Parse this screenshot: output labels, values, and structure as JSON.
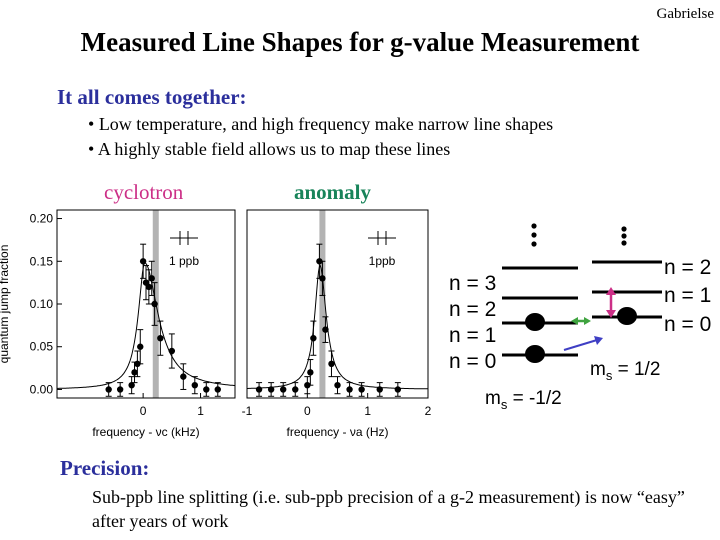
{
  "header": {
    "author": "Gabrielse",
    "title": "Measured Line Shapes for g-value Measurement",
    "subtitle": "It all comes together:",
    "bullets": [
      "Low temperature, and high frequency make narrow line shapes",
      "A highly stable field allows us to map these lines"
    ]
  },
  "labels": {
    "cyclotron": "cyclotron",
    "anomaly": "anomaly"
  },
  "colors": {
    "heading_blue": "#2b2f9c",
    "cyclotron_pink": "#cc2f87",
    "anomaly_green": "#18845a",
    "resonance_bar": "#b3b3b3"
  },
  "chart_data": [
    {
      "type": "scatter",
      "ylabel": "quantum jump fraction",
      "xlabel": "frequency - νc (kHz)",
      "yticks": [
        "0.00",
        "0.05",
        "0.10",
        "0.15",
        "0.20"
      ],
      "xticks": [
        "0",
        "1"
      ],
      "ylim": [
        -0.01,
        0.21
      ],
      "xlim": [
        -1.5,
        1.6
      ],
      "annotation": "1 ppb",
      "resonance_x": 0.22,
      "points": [
        {
          "x": -0.6,
          "y": 0.0,
          "err": 0.008
        },
        {
          "x": -0.4,
          "y": 0.0,
          "err": 0.008
        },
        {
          "x": -0.2,
          "y": 0.005,
          "err": 0.01
        },
        {
          "x": -0.15,
          "y": 0.02,
          "err": 0.012
        },
        {
          "x": -0.1,
          "y": 0.03,
          "err": 0.015
        },
        {
          "x": -0.05,
          "y": 0.05,
          "err": 0.02
        },
        {
          "x": 0.0,
          "y": 0.15,
          "err": 0.02
        },
        {
          "x": 0.05,
          "y": 0.125,
          "err": 0.02
        },
        {
          "x": 0.1,
          "y": 0.12,
          "err": 0.02
        },
        {
          "x": 0.15,
          "y": 0.13,
          "err": 0.02
        },
        {
          "x": 0.2,
          "y": 0.1,
          "err": 0.025
        },
        {
          "x": 0.3,
          "y": 0.06,
          "err": 0.02
        },
        {
          "x": 0.5,
          "y": 0.045,
          "err": 0.02
        },
        {
          "x": 0.7,
          "y": 0.015,
          "err": 0.015
        },
        {
          "x": 0.9,
          "y": 0.005,
          "err": 0.01
        },
        {
          "x": 1.1,
          "y": 0.0,
          "err": 0.008
        },
        {
          "x": 1.3,
          "y": 0.0,
          "err": 0.008
        }
      ]
    },
    {
      "type": "scatter",
      "xlabel": "frequency - νa (Hz)",
      "yticks": [],
      "xticks": [
        "-1",
        "0",
        "1",
        "2"
      ],
      "ylim": [
        -0.01,
        0.21
      ],
      "xlim": [
        -1.0,
        2.0
      ],
      "annotation": "1ppb",
      "resonance_x": 0.25,
      "points": [
        {
          "x": -0.8,
          "y": 0.0,
          "err": 0.008
        },
        {
          "x": -0.6,
          "y": 0.0,
          "err": 0.008
        },
        {
          "x": -0.4,
          "y": 0.0,
          "err": 0.008
        },
        {
          "x": -0.2,
          "y": 0.0,
          "err": 0.008
        },
        {
          "x": 0.0,
          "y": 0.005,
          "err": 0.01
        },
        {
          "x": 0.05,
          "y": 0.02,
          "err": 0.015
        },
        {
          "x": 0.1,
          "y": 0.06,
          "err": 0.02
        },
        {
          "x": 0.2,
          "y": 0.15,
          "err": 0.02
        },
        {
          "x": 0.25,
          "y": 0.13,
          "err": 0.02
        },
        {
          "x": 0.3,
          "y": 0.07,
          "err": 0.015
        },
        {
          "x": 0.4,
          "y": 0.03,
          "err": 0.015
        },
        {
          "x": 0.5,
          "y": 0.005,
          "err": 0.01
        },
        {
          "x": 0.7,
          "y": 0.0,
          "err": 0.008
        },
        {
          "x": 0.9,
          "y": 0.0,
          "err": 0.008
        },
        {
          "x": 1.2,
          "y": 0.0,
          "err": 0.008
        },
        {
          "x": 1.5,
          "y": 0.0,
          "err": 0.008
        }
      ]
    }
  ],
  "levels": {
    "left": [
      "n = 3",
      "n = 2",
      "n = 1",
      "n = 0"
    ],
    "right": [
      "n = 2",
      "n = 1",
      "n = 0"
    ],
    "ms_left": "-1/2",
    "ms_right": "1/2",
    "ms_symbol": "m",
    "ms_sub": "s"
  },
  "precision": {
    "heading": "Precision:",
    "text": "Sub-ppb line splitting (i.e. sub-ppb precision of a g-2 measurement) is now “easy” after years of work"
  }
}
